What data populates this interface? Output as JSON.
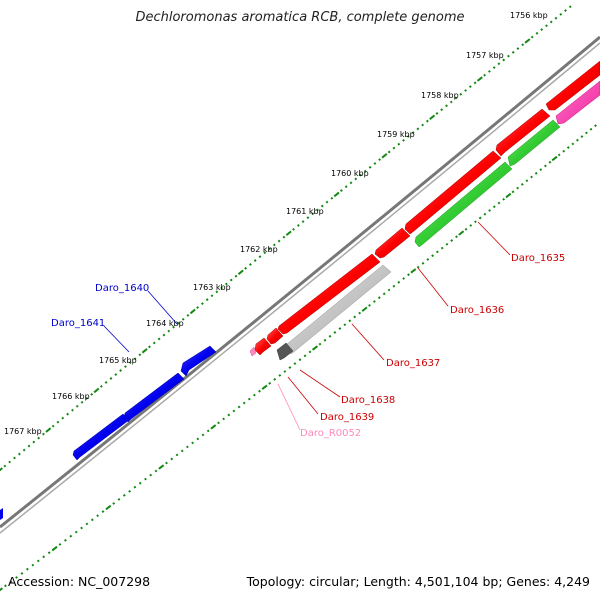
{
  "title": "Dechloromonas aromatica RCB, complete genome",
  "footer": {
    "accession": "Accession: NC_007298",
    "summary": "Topology: circular; Length: 4,501,104 bp; Genes: 4,249"
  },
  "colors": {
    "backbone": "#888888",
    "tick": "#118811",
    "forward_strand": "#0000ee",
    "reverse_red": "#ff0000",
    "reverse_green": "#33cc33",
    "reverse_magenta": "#ff33aa",
    "pseudo_gray": "#bbbbbb",
    "dark_gray": "#555555",
    "rrna_pink": "#ff88bb"
  },
  "scale_labels": [
    "1756 kbp",
    "1757 kbp",
    "1758 kbp",
    "1759 kbp",
    "1760 kbp",
    "1761 kbp",
    "1762 kbp",
    "1763 kbp",
    "1764 kbp",
    "1765 kbp",
    "1766 kbp",
    "1767 kbp"
  ],
  "genes": [
    {
      "name": "Daro_1640",
      "color": "#0000cc"
    },
    {
      "name": "Daro_1641",
      "color": "#0000cc"
    },
    {
      "name": "Daro_1635",
      "color": "#cc0000"
    },
    {
      "name": "Daro_1636",
      "color": "#cc0000"
    },
    {
      "name": "Daro_1637",
      "color": "#cc0000"
    },
    {
      "name": "Daro_1638",
      "color": "#cc0000"
    },
    {
      "name": "Daro_1639",
      "color": "#cc0000"
    },
    {
      "name": "Daro_R0052",
      "color": "#ff88bb"
    }
  ]
}
